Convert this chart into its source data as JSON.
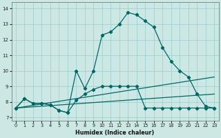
{
  "xlabel": "Humidex (Indice chaleur)",
  "bg_color": "#cce8e4",
  "grid_color": "#99cccc",
  "line_color": "#006666",
  "xlim": [
    -0.5,
    23.5
  ],
  "ylim": [
    6.8,
    14.4
  ],
  "xticks": [
    0,
    1,
    2,
    3,
    4,
    5,
    6,
    7,
    8,
    9,
    10,
    11,
    12,
    13,
    14,
    15,
    16,
    17,
    18,
    19,
    20,
    21,
    22,
    23
  ],
  "yticks": [
    7,
    8,
    9,
    10,
    11,
    12,
    13,
    14
  ],
  "line_main_x": [
    0,
    1,
    2,
    3,
    4,
    5,
    6,
    7,
    8,
    9,
    10,
    11,
    12,
    13,
    14,
    15,
    16,
    17,
    18,
    19,
    20,
    21,
    22,
    23
  ],
  "line_main_y": [
    7.6,
    8.2,
    7.9,
    7.9,
    7.8,
    7.45,
    7.3,
    10.0,
    8.85,
    10.0,
    12.3,
    12.5,
    13.0,
    13.75,
    13.6,
    13.2,
    12.8,
    11.5,
    10.6,
    10.0,
    9.6,
    8.5,
    7.7,
    7.6
  ],
  "line_trend1_x": [
    0,
    23
  ],
  "line_trend1_y": [
    7.6,
    9.6
  ],
  "line_trend2_x": [
    0,
    23
  ],
  "line_trend2_y": [
    7.6,
    8.5
  ],
  "line_flat_x": [
    0,
    1,
    2,
    3,
    4,
    5,
    6,
    7,
    8,
    9,
    10,
    11,
    12,
    13,
    14,
    15,
    16,
    17,
    18,
    19,
    20,
    21,
    22,
    23
  ],
  "line_flat_y": [
    7.6,
    8.2,
    7.9,
    7.9,
    7.8,
    7.45,
    7.3,
    8.1,
    8.5,
    8.8,
    9.0,
    9.0,
    9.0,
    9.0,
    9.0,
    7.6,
    7.6,
    7.6,
    7.6,
    7.6,
    7.6,
    7.6,
    7.6,
    7.6
  ]
}
